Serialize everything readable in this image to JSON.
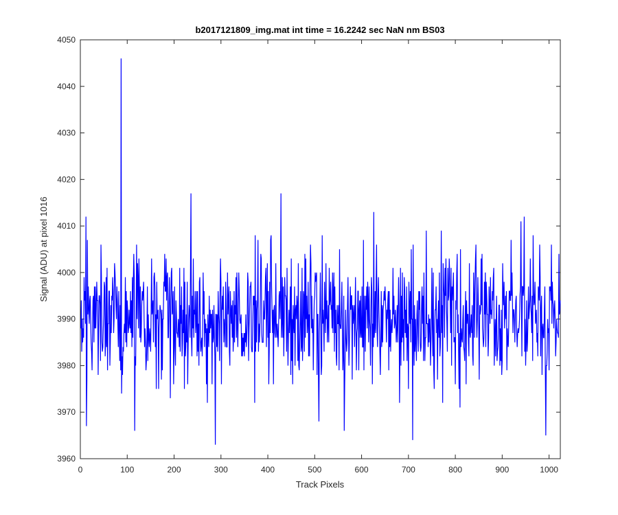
{
  "chart_data": {
    "type": "line",
    "title": "b2017121809_img.mat int time = 16.2242 sec  NaN nm BS03",
    "xlabel": "Track Pixels",
    "ylabel": "Signal (ADU) at pixel 1016",
    "xlim": [
      0,
      1024
    ],
    "ylim": [
      3960,
      4050
    ],
    "xticks": [
      0,
      100,
      200,
      300,
      400,
      500,
      600,
      700,
      800,
      900,
      1000
    ],
    "yticks": [
      3960,
      3970,
      3980,
      3990,
      4000,
      4010,
      4020,
      4030,
      4040,
      4050
    ],
    "grid": false,
    "legend": "none",
    "series": [
      {
        "color": "#0000ff",
        "peaks": [
          [
            12,
            4012
          ],
          [
            13,
            3967
          ],
          [
            87,
            4046
          ],
          [
            88,
            3974
          ],
          [
            116,
            3966
          ],
          [
            236,
            4017
          ],
          [
            288,
            3963
          ],
          [
            428,
            4017
          ],
          [
            563,
            3966
          ],
          [
            626,
            4013
          ],
          [
            709,
            3964
          ],
          [
            710,
            4006
          ],
          [
            810,
            3971
          ],
          [
            947,
            4012
          ],
          [
            993,
            3965
          ],
          [
            1005,
            4006
          ]
        ]
      }
    ]
  },
  "frame": {
    "background": "#ffffff",
    "axes_color": "#262626"
  }
}
